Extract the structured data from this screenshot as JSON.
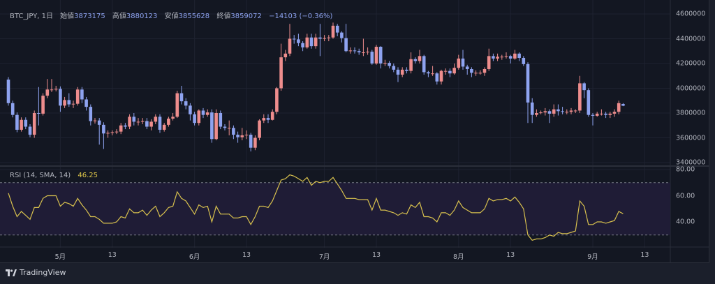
{
  "header": {
    "symbol": "BTC_JPY, 1日",
    "open_label": "始値",
    "open_value": "3873175",
    "high_label": "高値",
    "high_value": "3880123",
    "low_label": "安値",
    "low_value": "3855628",
    "close_label": "終値",
    "close_value": "3859072",
    "change": "−14103 (−0.36%)"
  },
  "rsi_legend": {
    "label": "RSI (14, SMA, 14)",
    "value": "46.25"
  },
  "footer": {
    "brand": "TradingView"
  },
  "colors": {
    "background": "#131722",
    "up": "#ee8d8d",
    "down": "#8ea3f0",
    "rsi_line": "#d8c14e",
    "rsi_band": "#1f1c36",
    "grid": "#1e2230"
  },
  "chart_data": [
    {
      "type": "candlestick",
      "x_range": [
        "4/19",
        "9/8"
      ],
      "y_ticks": [
        "4600000",
        "4400000",
        "4200000",
        "4000000",
        "3800000",
        "3600000",
        "3400000"
      ],
      "ylim": [
        3400000,
        4600000
      ],
      "x_ticks": [
        {
          "label": "5月",
          "date": "5/1"
        },
        {
          "label": "13",
          "date": "5/13"
        },
        {
          "label": "6月",
          "date": "6/1"
        },
        {
          "label": "13",
          "date": "6/13"
        },
        {
          "label": "7月",
          "date": "7/1"
        },
        {
          "label": "13",
          "date": "7/13"
        },
        {
          "label": "8月",
          "date": "8/1"
        },
        {
          "label": "13",
          "date": "8/13"
        },
        {
          "label": "9月",
          "date": "9/1"
        },
        {
          "label": "13",
          "date": "9/13"
        }
      ],
      "grid": true,
      "candles_ohlc": [
        [
          4070000,
          4090000,
          3860000,
          3880000
        ],
        [
          3880000,
          3900000,
          3765000,
          3785000
        ],
        [
          3785000,
          3805000,
          3645000,
          3665000
        ],
        [
          3665000,
          3765000,
          3650000,
          3745000
        ],
        [
          3745000,
          3765000,
          3670000,
          3690000
        ],
        [
          3690000,
          3710000,
          3605000,
          3625000
        ],
        [
          3625000,
          3820000,
          3600000,
          3800000
        ],
        [
          3800000,
          4010000,
          3700000,
          3795000
        ],
        [
          3795000,
          3960000,
          3780000,
          3940000
        ],
        [
          3940000,
          4075000,
          3920000,
          3990000
        ],
        [
          3990000,
          4075000,
          3970000,
          3990000
        ],
        [
          3990000,
          4020000,
          3975000,
          3995000
        ],
        [
          3995000,
          4015000,
          3810000,
          3860000
        ],
        [
          3860000,
          3930000,
          3840000,
          3905000
        ],
        [
          3905000,
          3960000,
          3850000,
          3870000
        ],
        [
          3870000,
          3900000,
          3840000,
          3875000
        ],
        [
          3875000,
          4010000,
          3860000,
          3990000
        ],
        [
          3990000,
          4010000,
          3880000,
          3910000
        ],
        [
          3910000,
          3930000,
          3820000,
          3850000
        ],
        [
          3850000,
          3870000,
          3700000,
          3735000
        ],
        [
          3735000,
          3760000,
          3715000,
          3740000
        ],
        [
          3740000,
          3760000,
          3545000,
          3705000
        ],
        [
          3705000,
          3725000,
          3510000,
          3635000
        ],
        [
          3635000,
          3660000,
          3600000,
          3640000
        ],
        [
          3640000,
          3660000,
          3620000,
          3645000
        ],
        [
          3645000,
          3670000,
          3630000,
          3650000
        ],
        [
          3650000,
          3720000,
          3630000,
          3700000
        ],
        [
          3700000,
          3720000,
          3670000,
          3690000
        ],
        [
          3690000,
          3790000,
          3670000,
          3770000
        ],
        [
          3770000,
          3800000,
          3700000,
          3730000
        ],
        [
          3730000,
          3760000,
          3700000,
          3730000
        ],
        [
          3730000,
          3760000,
          3710000,
          3735000
        ],
        [
          3735000,
          3760000,
          3670000,
          3690000
        ],
        [
          3690000,
          3750000,
          3660000,
          3730000
        ],
        [
          3730000,
          3790000,
          3710000,
          3770000
        ],
        [
          3770000,
          3790000,
          3640000,
          3665000
        ],
        [
          3665000,
          3720000,
          3650000,
          3705000
        ],
        [
          3705000,
          3770000,
          3690000,
          3755000
        ],
        [
          3755000,
          3800000,
          3740000,
          3770000
        ],
        [
          3770000,
          3980000,
          3760000,
          3960000
        ],
        [
          3960000,
          4020000,
          3870000,
          3895000
        ],
        [
          3895000,
          3920000,
          3830000,
          3860000
        ],
        [
          3860000,
          3880000,
          3740000,
          3790000
        ],
        [
          3790000,
          3810000,
          3700000,
          3720000
        ],
        [
          3720000,
          3830000,
          3700000,
          3820000
        ],
        [
          3820000,
          3840000,
          3760000,
          3785000
        ],
        [
          3785000,
          3830000,
          3770000,
          3805000
        ],
        [
          3805000,
          3830000,
          3560000,
          3590000
        ],
        [
          3590000,
          3830000,
          3580000,
          3800000
        ],
        [
          3800000,
          3820000,
          3670000,
          3690000
        ],
        [
          3690000,
          3710000,
          3660000,
          3680000
        ],
        [
          3680000,
          3740000,
          3620000,
          3680000
        ],
        [
          3680000,
          3700000,
          3590000,
          3625000
        ],
        [
          3625000,
          3650000,
          3560000,
          3605000
        ],
        [
          3605000,
          3680000,
          3580000,
          3620000
        ],
        [
          3620000,
          3660000,
          3590000,
          3625000
        ],
        [
          3625000,
          3640000,
          3490000,
          3520000
        ],
        [
          3520000,
          3620000,
          3500000,
          3600000
        ],
        [
          3600000,
          3750000,
          3580000,
          3740000
        ],
        [
          3740000,
          3790000,
          3720000,
          3760000
        ],
        [
          3760000,
          3790000,
          3720000,
          3745000
        ],
        [
          3745000,
          3830000,
          3740000,
          3810000
        ],
        [
          3810000,
          4010000,
          3790000,
          4000000
        ],
        [
          4000000,
          4360000,
          3980000,
          4250000
        ],
        [
          4250000,
          4310000,
          4220000,
          4280000
        ],
        [
          4280000,
          4520000,
          4260000,
          4400000
        ],
        [
          4400000,
          4430000,
          4360000,
          4395000
        ],
        [
          4395000,
          4440000,
          4340000,
          4365000
        ],
        [
          4365000,
          4380000,
          4300000,
          4330000
        ],
        [
          4330000,
          4440000,
          4320000,
          4410000
        ],
        [
          4410000,
          4440000,
          4320000,
          4340000
        ],
        [
          4340000,
          4440000,
          4320000,
          4410000
        ],
        [
          4410000,
          4520000,
          4260000,
          4400000
        ],
        [
          4400000,
          4430000,
          4380000,
          4405000
        ],
        [
          4405000,
          4430000,
          4380000,
          4410000
        ],
        [
          4410000,
          4530000,
          4400000,
          4505000
        ],
        [
          4505000,
          4520000,
          4420000,
          4450000
        ],
        [
          4450000,
          4460000,
          4370000,
          4405000
        ],
        [
          4405000,
          4520000,
          4290000,
          4300000
        ],
        [
          4300000,
          4330000,
          4280000,
          4305000
        ],
        [
          4305000,
          4330000,
          4280000,
          4300000
        ],
        [
          4300000,
          4320000,
          4270000,
          4290000
        ],
        [
          4290000,
          4400000,
          4260000,
          4290000
        ],
        [
          4290000,
          4330000,
          4270000,
          4295000
        ],
        [
          4295000,
          4310000,
          4190000,
          4200000
        ],
        [
          4200000,
          4350000,
          4190000,
          4335000
        ],
        [
          4335000,
          4340000,
          4160000,
          4200000
        ],
        [
          4200000,
          4230000,
          4180000,
          4205000
        ],
        [
          4205000,
          4220000,
          4160000,
          4180000
        ],
        [
          4180000,
          4200000,
          4130000,
          4150000
        ],
        [
          4150000,
          4170000,
          4050000,
          4110000
        ],
        [
          4110000,
          4170000,
          4090000,
          4150000
        ],
        [
          4150000,
          4170000,
          4120000,
          4140000
        ],
        [
          4140000,
          4290000,
          4120000,
          4235000
        ],
        [
          4235000,
          4250000,
          4200000,
          4220000
        ],
        [
          4220000,
          4310000,
          4200000,
          4260000
        ],
        [
          4260000,
          4270000,
          4110000,
          4130000
        ],
        [
          4130000,
          4140000,
          4090000,
          4120000
        ],
        [
          4120000,
          4180000,
          4100000,
          4120000
        ],
        [
          4120000,
          4130000,
          4030000,
          4055000
        ],
        [
          4055000,
          4150000,
          4030000,
          4140000
        ],
        [
          4140000,
          4160000,
          4110000,
          4140000
        ],
        [
          4140000,
          4160000,
          4090000,
          4120000
        ],
        [
          4120000,
          4200000,
          4110000,
          4165000
        ],
        [
          4165000,
          4270000,
          4150000,
          4240000
        ],
        [
          4240000,
          4310000,
          4150000,
          4175000
        ],
        [
          4175000,
          4190000,
          4110000,
          4155000
        ],
        [
          4155000,
          4170000,
          4090000,
          4125000
        ],
        [
          4125000,
          4145000,
          4100000,
          4125000
        ],
        [
          4125000,
          4145000,
          4110000,
          4125000
        ],
        [
          4125000,
          4170000,
          4100000,
          4155000
        ],
        [
          4155000,
          4320000,
          4140000,
          4260000
        ],
        [
          4260000,
          4280000,
          4220000,
          4240000
        ],
        [
          4240000,
          4280000,
          4220000,
          4255000
        ],
        [
          4255000,
          4270000,
          4230000,
          4255000
        ],
        [
          4255000,
          4290000,
          4240000,
          4260000
        ],
        [
          4260000,
          4270000,
          4200000,
          4240000
        ],
        [
          4240000,
          4310000,
          4230000,
          4280000
        ],
        [
          4280000,
          4290000,
          4220000,
          4245000
        ],
        [
          4245000,
          4260000,
          4180000,
          4195000
        ],
        [
          4195000,
          4210000,
          3720000,
          3885000
        ],
        [
          3885000,
          3920000,
          3720000,
          3785000
        ],
        [
          3785000,
          3830000,
          3770000,
          3800000
        ],
        [
          3800000,
          3820000,
          3790000,
          3805000
        ],
        [
          3805000,
          3840000,
          3780000,
          3815000
        ],
        [
          3815000,
          3830000,
          3720000,
          3795000
        ],
        [
          3795000,
          3870000,
          3770000,
          3830000
        ],
        [
          3830000,
          3870000,
          3780000,
          3815000
        ],
        [
          3815000,
          3850000,
          3790000,
          3810000
        ],
        [
          3810000,
          3830000,
          3790000,
          3810000
        ],
        [
          3810000,
          3840000,
          3790000,
          3820000
        ],
        [
          3820000,
          3830000,
          3800000,
          3820000
        ],
        [
          3820000,
          4100000,
          3800000,
          4040000
        ],
        [
          4040000,
          4050000,
          3920000,
          3985000
        ],
        [
          3985000,
          4000000,
          3770000,
          3785000
        ],
        [
          3785000,
          3800000,
          3700000,
          3778000
        ],
        [
          3778000,
          3810000,
          3770000,
          3795000
        ],
        [
          3795000,
          3830000,
          3780000,
          3795000
        ],
        [
          3795000,
          3810000,
          3760000,
          3785000
        ],
        [
          3785000,
          3810000,
          3760000,
          3795000
        ],
        [
          3795000,
          3830000,
          3770000,
          3810000
        ],
        [
          3810000,
          3900000,
          3790000,
          3880000
        ],
        [
          3873175,
          3880123,
          3855628,
          3859072
        ]
      ]
    },
    {
      "type": "line",
      "name": "RSI (14, SMA, 14)",
      "y_ticks": [
        "80.00",
        "60.00",
        "40.00"
      ],
      "ylim": [
        20,
        85
      ],
      "band": [
        30,
        70
      ],
      "values": [
        62,
        52,
        44,
        48,
        45,
        42,
        51,
        51,
        58,
        60,
        60,
        60,
        52,
        55,
        54,
        52,
        58,
        53,
        49,
        44,
        44,
        42,
        39,
        39,
        39,
        40,
        44,
        43,
        50,
        47,
        47,
        49,
        45,
        49,
        52,
        44,
        47,
        51,
        52,
        63,
        58,
        56,
        51,
        46,
        53,
        51,
        52,
        40,
        52,
        46,
        46,
        46,
        43,
        43,
        44,
        44,
        38,
        44,
        52,
        52,
        51,
        56,
        64,
        72,
        73,
        76,
        75,
        73,
        71,
        74,
        68,
        71,
        70,
        71,
        71,
        74,
        69,
        64,
        58,
        58,
        58,
        57,
        57,
        57,
        49,
        58,
        49,
        49,
        48,
        47,
        45,
        47,
        46,
        53,
        51,
        55,
        44,
        44,
        43,
        40,
        47,
        47,
        45,
        49,
        56,
        51,
        49,
        47,
        47,
        47,
        50,
        58,
        56,
        57,
        57,
        58,
        56,
        59,
        55,
        50,
        30,
        26,
        27,
        27,
        28,
        30,
        29,
        32,
        31,
        31,
        32,
        33,
        56,
        52,
        38,
        38,
        40,
        40,
        39,
        40,
        41,
        48,
        46.25
      ]
    }
  ]
}
